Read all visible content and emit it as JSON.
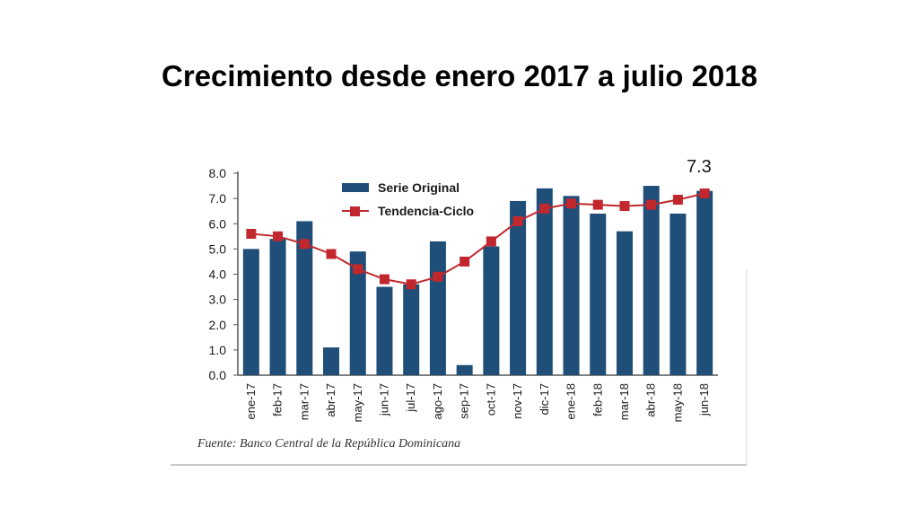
{
  "title": "Crecimiento desde enero 2017 a julio 2018",
  "source": "Fuente: Banco Central de la República Dominicana",
  "colors": {
    "bar": "#1f4e79",
    "line": "#c0282e",
    "axis": "#555555"
  },
  "chart_data": {
    "type": "bar",
    "categories": [
      "ene-17",
      "feb-17",
      "mar-17",
      "abr-17",
      "may-17",
      "jun-17",
      "jul-17",
      "ago-17",
      "sep-17",
      "oct-17",
      "nov-17",
      "dic-17",
      "ene-18",
      "feb-18",
      "mar-18",
      "abr-18",
      "may-18",
      "jun-18"
    ],
    "series": [
      {
        "name": "Serie Original",
        "kind": "bar",
        "values": [
          5.0,
          5.4,
          6.1,
          1.1,
          4.9,
          3.5,
          3.6,
          5.3,
          0.4,
          5.1,
          6.9,
          7.4,
          7.1,
          6.4,
          5.7,
          7.5,
          6.4,
          7.3
        ]
      },
      {
        "name": "Tendencia-Ciclo",
        "kind": "line",
        "values": [
          5.6,
          5.5,
          5.2,
          4.8,
          4.2,
          3.8,
          3.6,
          3.9,
          4.5,
          5.3,
          6.1,
          6.6,
          6.8,
          6.75,
          6.7,
          6.75,
          6.95,
          7.2
        ]
      }
    ],
    "y_ticks": [
      "0.0",
      "1.0",
      "2.0",
      "3.0",
      "4.0",
      "5.0",
      "6.0",
      "7.0",
      "8.0"
    ],
    "ylim": [
      0,
      8
    ],
    "annotation": "7.3",
    "legend_position": "top-left",
    "grid": false
  }
}
